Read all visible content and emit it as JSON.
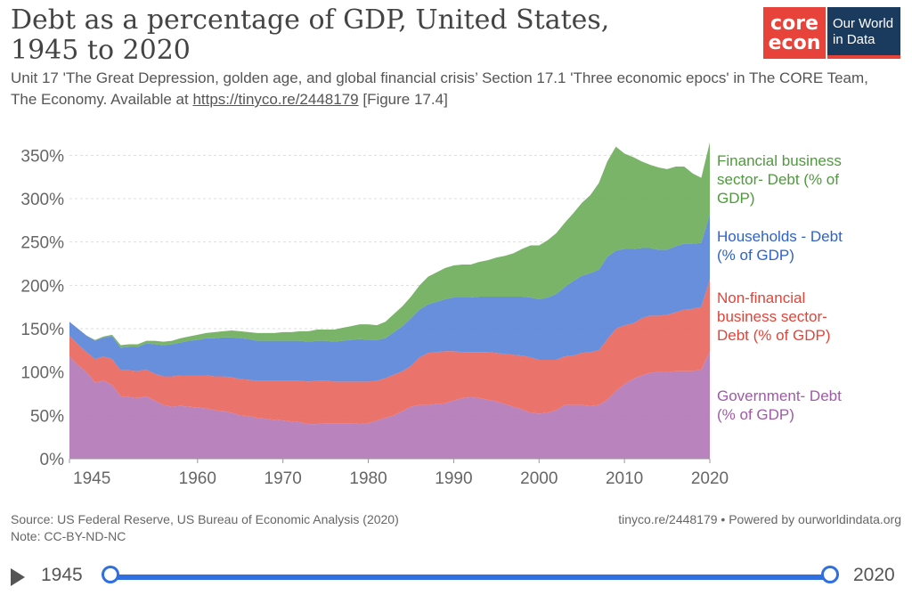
{
  "header": {
    "title": "Debt as a percentage of GDP, United States, 1945 to 2020",
    "subtitle_prefix": "Unit 17 'The Great Depression, golden age, and global financial crisis’ Section 17.1 'Three economic epocs' in The CORE Team, The Economy. Available at ",
    "subtitle_link": "https://tinyco.re/2448179",
    "subtitle_suffix": " [Figure 17.4]",
    "logo_core_line1": "core",
    "logo_core_line2": "econ",
    "logo_owid_line1": "Our World",
    "logo_owid_line2": "in Data"
  },
  "colors": {
    "government": "#b378b8",
    "nonfinancial": "#e8685f",
    "households": "#5a85d8",
    "financial": "#6fae5c",
    "accent": "#2f6fe0"
  },
  "chart_data": {
    "type": "area",
    "stacked": true,
    "x": [
      1945,
      1946,
      1947,
      1948,
      1949,
      1950,
      1951,
      1952,
      1953,
      1954,
      1955,
      1956,
      1957,
      1958,
      1959,
      1960,
      1961,
      1962,
      1963,
      1964,
      1965,
      1966,
      1967,
      1968,
      1969,
      1970,
      1971,
      1972,
      1973,
      1974,
      1975,
      1976,
      1977,
      1978,
      1979,
      1980,
      1981,
      1982,
      1983,
      1984,
      1985,
      1986,
      1987,
      1988,
      1989,
      1990,
      1991,
      1992,
      1993,
      1994,
      1995,
      1996,
      1997,
      1998,
      1999,
      2000,
      2001,
      2002,
      2003,
      2004,
      2005,
      2006,
      2007,
      2008,
      2009,
      2010,
      2011,
      2012,
      2013,
      2014,
      2015,
      2016,
      2017,
      2018,
      2019,
      2020
    ],
    "series": [
      {
        "name": "Government- Debt (% of GDP)",
        "key": "government",
        "values": [
          118,
          108,
          100,
          88,
          90,
          85,
          72,
          71,
          70,
          72,
          67,
          62,
          60,
          61,
          60,
          59,
          58,
          56,
          55,
          53,
          50,
          49,
          47,
          46,
          45,
          44,
          43,
          42,
          40,
          40,
          41,
          41,
          41,
          41,
          40,
          41,
          44,
          47,
          50,
          55,
          60,
          62,
          62,
          63,
          64,
          67,
          70,
          71,
          70,
          68,
          66,
          63,
          60,
          57,
          53,
          52,
          53,
          56,
          62,
          62,
          62,
          61,
          62,
          68,
          78,
          86,
          92,
          96,
          99,
          100,
          100,
          101,
          101,
          101,
          103,
          124
        ]
      },
      {
        "name": "Non-financial business sector- Debt (% of GDP)",
        "key": "nonfinancial",
        "values": [
          24,
          24,
          23,
          27,
          28,
          30,
          30,
          31,
          31,
          31,
          31,
          33,
          35,
          35,
          36,
          37,
          38,
          39,
          40,
          41,
          42,
          42,
          43,
          44,
          45,
          46,
          47,
          48,
          49,
          50,
          49,
          48,
          48,
          48,
          49,
          48,
          46,
          46,
          47,
          46,
          47,
          55,
          60,
          60,
          60,
          57,
          53,
          52,
          53,
          55,
          56,
          58,
          60,
          62,
          64,
          62,
          61,
          58,
          56,
          57,
          60,
          62,
          63,
          70,
          72,
          68,
          64,
          66,
          66,
          65,
          66,
          68,
          71,
          72,
          72,
          83
        ]
      },
      {
        "name": "Households - Debt (% of GDP)",
        "key": "households",
        "values": [
          16,
          18,
          19,
          21,
          22,
          26,
          26,
          27,
          28,
          30,
          34,
          36,
          37,
          38,
          40,
          41,
          43,
          44,
          45,
          46,
          47,
          47,
          46,
          46,
          46,
          46,
          46,
          46,
          46,
          46,
          46,
          46,
          47,
          48,
          49,
          48,
          47,
          46,
          49,
          52,
          55,
          55,
          56,
          58,
          60,
          62,
          63,
          63,
          64,
          64,
          65,
          66,
          67,
          68,
          69,
          70,
          72,
          76,
          80,
          86,
          89,
          91,
          93,
          95,
          90,
          88,
          86,
          81,
          78,
          76,
          75,
          76,
          76,
          75,
          74,
          75
        ]
      },
      {
        "name": "Financial business sector- Debt (% of GDP)",
        "key": "financial",
        "values": [
          0,
          0,
          0,
          1,
          1,
          2,
          3,
          3,
          3,
          3,
          4,
          4,
          4,
          5,
          5,
          6,
          6,
          7,
          7,
          8,
          8,
          8,
          9,
          9,
          9,
          10,
          10,
          11,
          12,
          13,
          13,
          14,
          15,
          16,
          17,
          18,
          17,
          19,
          21,
          23,
          25,
          28,
          32,
          34,
          36,
          37,
          38,
          38,
          40,
          42,
          45,
          47,
          50,
          55,
          60,
          62,
          66,
          70,
          74,
          78,
          84,
          90,
          100,
          110,
          120,
          110,
          106,
          100,
          96,
          95,
          93,
          92,
          89,
          81,
          75,
          83
        ]
      }
    ],
    "ylim": [
      0,
      375
    ],
    "y_ticks": [
      "0%",
      "50%",
      "100%",
      "150%",
      "200%",
      "250%",
      "300%",
      "350%"
    ],
    "x_tick_labels": [
      "1945",
      "1960",
      "1970",
      "1980",
      "1990",
      "2000",
      "2010",
      "2020"
    ],
    "x_tick_values": [
      1945,
      1960,
      1970,
      1980,
      1990,
      2000,
      2010,
      2020
    ],
    "grid": true,
    "legend": "right"
  },
  "legend_labels": {
    "financial": [
      "Financial business",
      "sector- Debt (% of",
      "GDP)"
    ],
    "households": [
      "Households - Debt",
      "(% of GDP)"
    ],
    "nonfinancial": [
      "Non-financial",
      "business sector-",
      "Debt (% of GDP)"
    ],
    "government": [
      "Government- Debt",
      "(% of GDP)"
    ]
  },
  "footer": {
    "source": "Source: US Federal Reserve, US Bureau of Economic Analysis (2020)",
    "note": "Note: CC-BY-ND-NC",
    "right": "tinyco.re/2448179 • Powered by ourworldindata.org"
  },
  "timeline": {
    "start_label": "1945",
    "end_label": "2020",
    "start_value": 1945,
    "end_value": 2020
  }
}
